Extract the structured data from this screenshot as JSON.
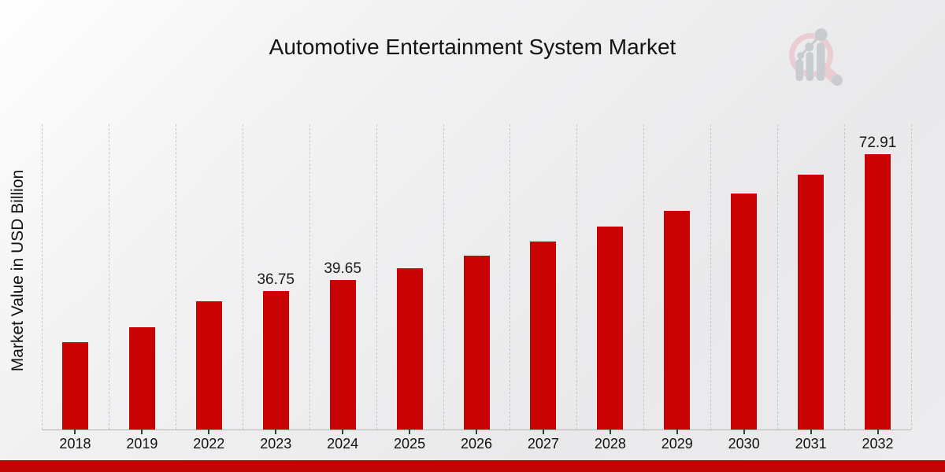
{
  "title": "Automotive Entertainment System Market",
  "y_axis_label": "Market Value in USD Billion",
  "chart_data": {
    "type": "bar",
    "title": "Automotive Entertainment System Market",
    "xlabel": "",
    "ylabel": "Market Value in USD Billion",
    "categories": [
      "2018",
      "2019",
      "2022",
      "2023",
      "2024",
      "2025",
      "2026",
      "2027",
      "2028",
      "2029",
      "2030",
      "2031",
      "2032"
    ],
    "values": [
      23.2,
      27.3,
      34.1,
      36.75,
      39.65,
      42.79,
      46.17,
      49.83,
      53.77,
      58.02,
      62.61,
      67.57,
      72.91
    ],
    "point_labels": {
      "2023": "36.75",
      "2024": "39.65",
      "2032": "72.91"
    },
    "ylim": [
      0,
      80.65
    ],
    "grid": "vertical-dashed",
    "legend_position": "none",
    "bar_color": "#c90303"
  },
  "colors": {
    "bar": "#c90303",
    "footer_stripe": "#bf0404",
    "gridline": "#c7c7c7",
    "axis_line": "#b3b3b3",
    "text": "#141414",
    "background_light": "#fefefe",
    "background_dark": "#e9e9eb",
    "logo_pink": "#e9cdd2",
    "logo_gray": "#c9cccf"
  },
  "logo": {
    "name": "market-research-future-watermark"
  }
}
